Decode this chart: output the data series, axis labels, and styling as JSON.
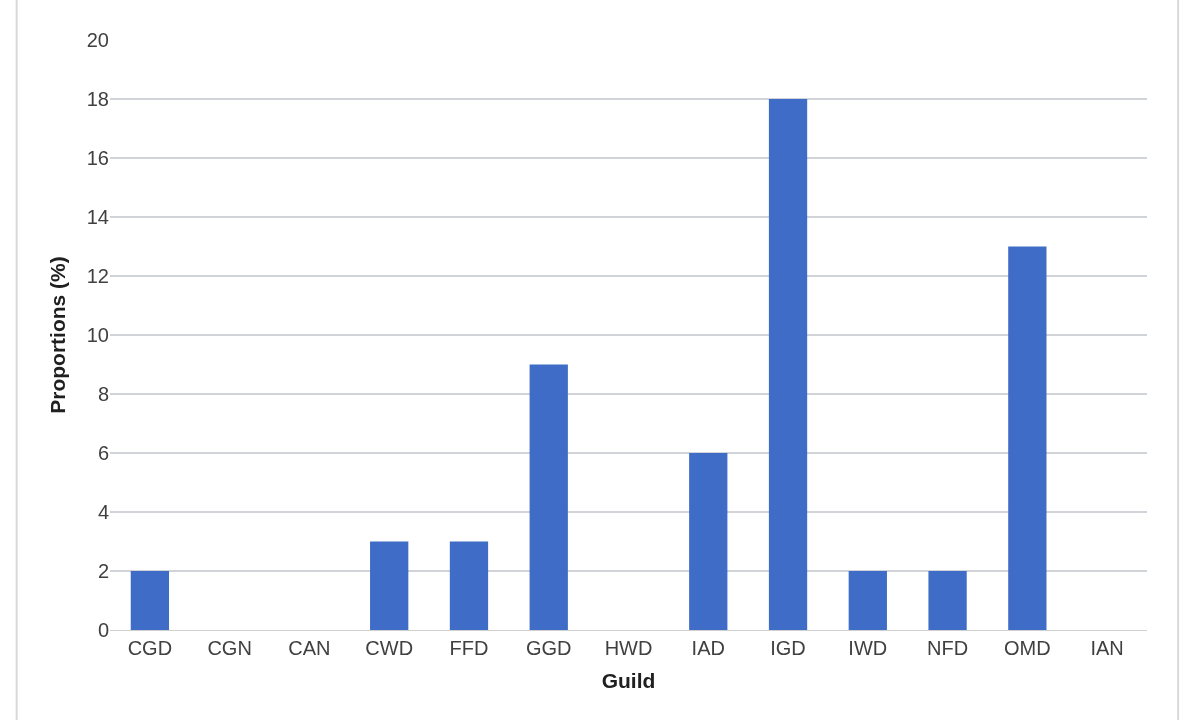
{
  "chart_data": {
    "type": "bar",
    "xlabel": "Guild",
    "ylabel": "Proportions (%)",
    "categories": [
      "CGD",
      "CGN",
      "CAN",
      "CWD",
      "FFD",
      "GGD",
      "HWD",
      "IAD",
      "IGD",
      "IWD",
      "NFD",
      "OMD",
      "IAN"
    ],
    "values": [
      2,
      0,
      0,
      3,
      3,
      9,
      0,
      6,
      18,
      2,
      2,
      13,
      0
    ],
    "color": "#3f6cc6",
    "ylim": [
      0,
      20
    ],
    "yticks": [
      0,
      2,
      4,
      6,
      8,
      10,
      12,
      14,
      16,
      18,
      20
    ],
    "grid": "y"
  }
}
